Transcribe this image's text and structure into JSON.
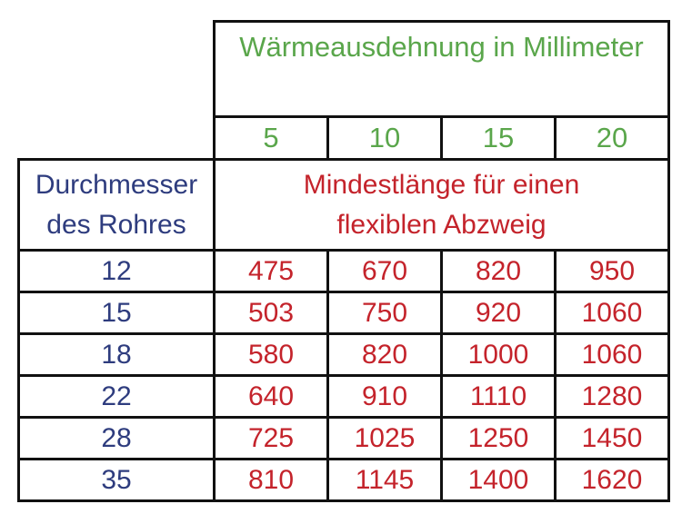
{
  "table": {
    "header_title": "Wärmeausdehnung in Millimeter",
    "expansion_values": [
      "5",
      "10",
      "15",
      "20"
    ],
    "row_header": [
      "Durchmesser",
      "des Rohres"
    ],
    "subheader": [
      "Mindestlänge für einen",
      "flexiblen Abzweig"
    ],
    "rows": [
      {
        "diameter": "12",
        "values": [
          "475",
          "670",
          "820",
          "950"
        ]
      },
      {
        "diameter": "15",
        "values": [
          "503",
          "750",
          "920",
          "1060"
        ]
      },
      {
        "diameter": "18",
        "values": [
          "580",
          "820",
          "1000",
          "1060"
        ]
      },
      {
        "diameter": "22",
        "values": [
          "640",
          "910",
          "1110",
          "1280"
        ]
      },
      {
        "diameter": "28",
        "values": [
          "725",
          "1025",
          "1250",
          "1450"
        ]
      },
      {
        "diameter": "35",
        "values": [
          "810",
          "1145",
          "1400",
          "1620"
        ]
      }
    ]
  },
  "colors": {
    "header_green": "#5aa64b",
    "value_red": "#c4232b",
    "label_blue": "#2e3c7e",
    "border": "#111111"
  }
}
